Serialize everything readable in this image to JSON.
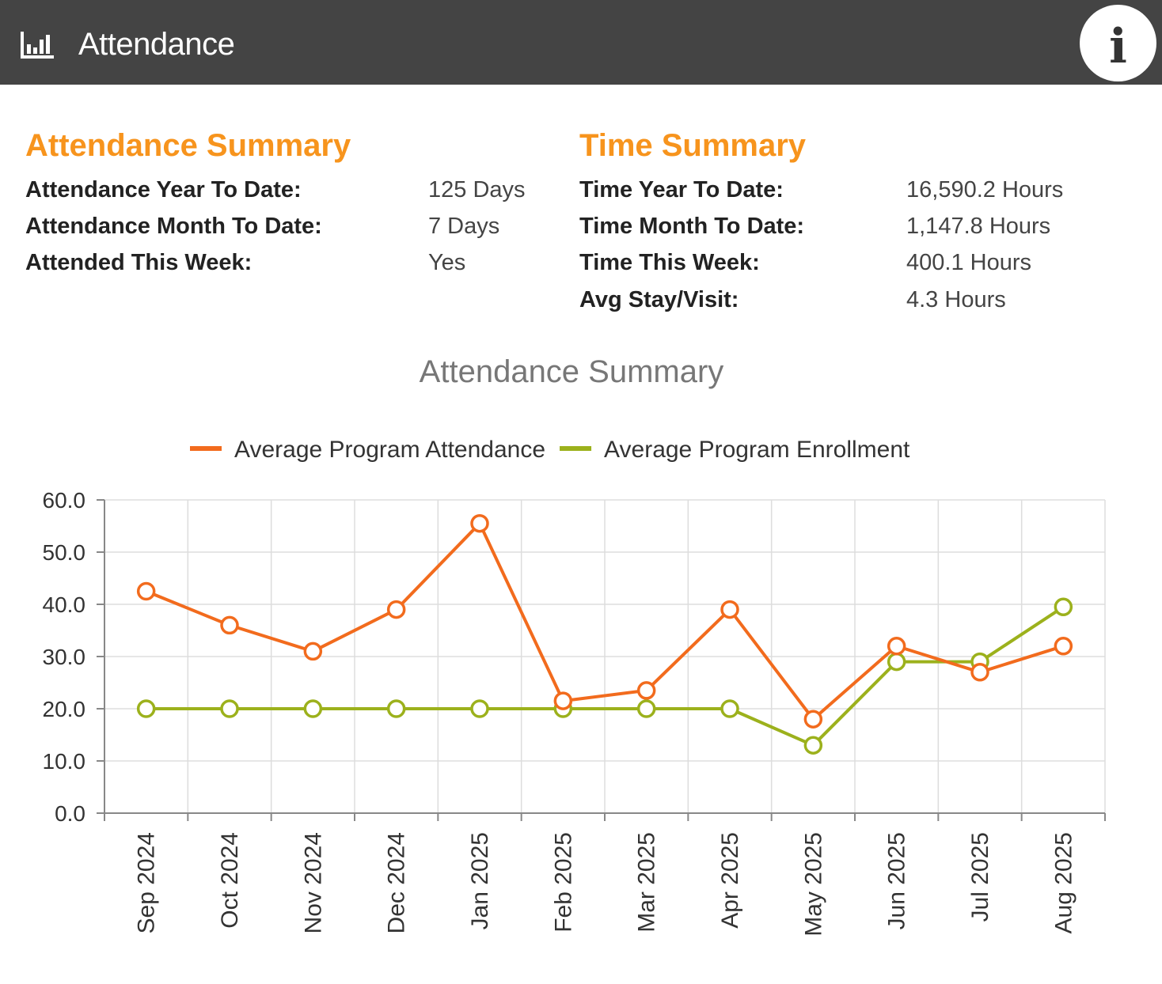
{
  "header": {
    "title": "Attendance",
    "icon": "bar-chart-icon",
    "info_icon": "info-icon",
    "info_glyph": "i",
    "background": "#444444"
  },
  "attendance_summary": {
    "title": "Attendance Summary",
    "rows": [
      {
        "label": "Attendance Year To Date:",
        "value": "125 Days"
      },
      {
        "label": "Attendance Month To Date:",
        "value": "7 Days"
      },
      {
        "label": "Attended This Week:",
        "value": "Yes"
      }
    ]
  },
  "time_summary": {
    "title": "Time Summary",
    "rows": [
      {
        "label": "Time Year To Date:",
        "value": "16,590.2 Hours"
      },
      {
        "label": "Time Month To Date:",
        "value": "1,147.8 Hours"
      },
      {
        "label": "Time This Week:",
        "value": "400.1 Hours"
      },
      {
        "label": "Avg Stay/Visit:",
        "value": "4.3 Hours"
      }
    ]
  },
  "accent_color": "#f7941d",
  "chart_data": {
    "type": "line",
    "title": "Attendance Summary",
    "xlabel": "",
    "ylabel": "",
    "categories": [
      "Sep 2024",
      "Oct 2024",
      "Nov 2024",
      "Dec 2024",
      "Jan 2025",
      "Feb 2025",
      "Mar 2025",
      "Apr 2025",
      "May 2025",
      "Jun 2025",
      "Jul 2025",
      "Aug 2025"
    ],
    "series": [
      {
        "name": "Average Program Attendance",
        "color": "#f26b1d",
        "values": [
          42.5,
          36.0,
          31.0,
          39.0,
          55.5,
          21.5,
          23.5,
          39.0,
          18.0,
          32.0,
          27.0,
          32.0
        ]
      },
      {
        "name": "Average Program Enrollment",
        "color": "#9cb11c",
        "values": [
          20.0,
          20.0,
          20.0,
          20.0,
          20.0,
          20.0,
          20.0,
          20.0,
          13.0,
          29.0,
          29.0,
          39.5
        ]
      }
    ],
    "ylim": [
      0,
      60
    ],
    "yticks": [
      "0.0",
      "10.0",
      "20.0",
      "30.0",
      "40.0",
      "50.0",
      "60.0"
    ],
    "grid": true,
    "legend": "top-center"
  }
}
